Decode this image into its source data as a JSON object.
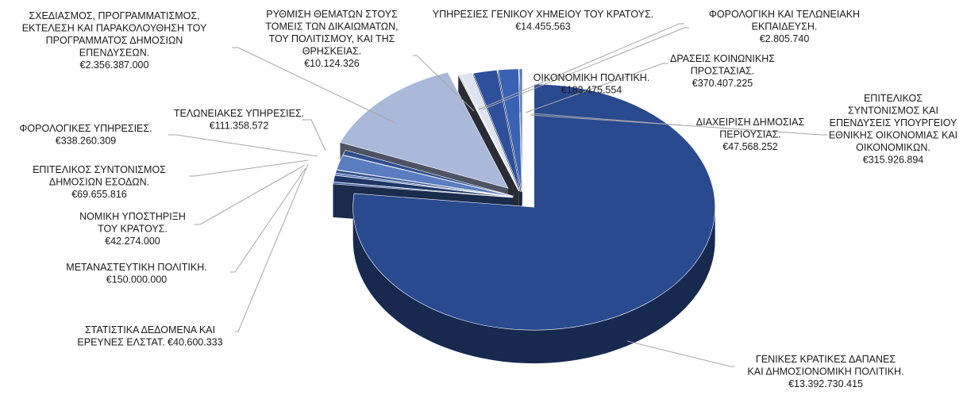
{
  "chart_data": {
    "type": "pie",
    "style": "3d-exploded",
    "title": "",
    "currency": "€",
    "slices": [
      {
        "label": "ΓΕΝΙΚΕΣ ΚΡΑΤΙΚΕΣ ΔΑΠΑΝΕΣ ΚΑΙ ΔΗΜΟΣΙΟΝΟΜΙΚΗ ΠΟΛΙΤΙΚΗ.",
        "value": 13392730415,
        "value_text": "€13.392.730.415",
        "color": "#2a4a90"
      },
      {
        "label": "ΣΤΑΤΙΣΤΙΚΑ ΔΕΔΟΜΕΝΑ ΚΑΙ ΕΡΕΥΝΕΣ ΕΛΣΤΑΤ.",
        "value": 40600333,
        "value_text": "€40.600.333",
        "color": "#3b5fa8"
      },
      {
        "label": "ΜΕΤΑΝΑΣΤΕΥΤΙΚΗ ΠΟΛΙΤΙΚΗ.",
        "value": 150000000,
        "value_text": "€150.000.000",
        "color": "#1f3566"
      },
      {
        "label": "ΝΟΜΙΚΗ ΥΠΟΣΤΗΡΙΞΗ ΤΟΥ ΚΡΑΤΟΥΣ.",
        "value": 42274000,
        "value_text": "€42.274.000",
        "color": "#4a6db5"
      },
      {
        "label": "ΕΠΙΤΕΛΙΚΟΣ ΣΥΝΤΟΝΙΣΜΟΣ ΔΗΜΟΣΙΩΝ ΕΣΟΔΩΝ.",
        "value": 69655816,
        "value_text": "€69.655.816",
        "color": "#35548f"
      },
      {
        "label": "ΦΟΡΟΛΟΓΙΚΕΣ ΥΠΗΡΕΣΙΕΣ.",
        "value": 338260309,
        "value_text": "€338.260.309",
        "color": "#5a7cc0"
      },
      {
        "label": "ΤΕΛΩΝΕΙΑΚΕΣ ΥΠΗΡΕΣΙΕΣ.",
        "value": 111358572,
        "value_text": "€111.358.572",
        "color": "#2f4f8f"
      },
      {
        "label": "ΣΧΕΔΙΑΣΜΟΣ, ΠΡΟΓΡΑΜΜΑΤΙΣΜΟΣ, ΕΚΤΕΛΕΣΗ ΚΑΙ ΠΑΡΑΚΟΛΟΥΘΗΣΗ ΤΟΥ ΠΡΟΓΡΑΜΜΑΤΟΣ ΔΗΜΟΣΙΩΝ ΕΠΕΝΔΥΣΕΩΝ.",
        "value": 2356387000,
        "value_text": "€2.356.387.000",
        "color": "#aab8da"
      },
      {
        "label": "ΡΥΘΜΙΣΗ ΘΕΜΑΤΩΝ ΣΤΟΥΣ ΤΟΜΕΙΣ ΤΩΝ ΔΙΚΑΙΩΜΑΤΩΝ, ΤΟΥ ΠΟΛΙΤΙΣΜΟΥ, ΚΑΙ ΤΗΣ ΘΡΗΣΚΕΙΑΣ.",
        "value": 10124326,
        "value_text": "€10.124.326",
        "color": "#5b6273"
      },
      {
        "label": "ΥΠΗΡΕΣΙΕΣ ΓΕΝΙΚΟΥ ΧΗΜΕΙΟΥ ΤΟΥ ΚΡΑΤΟΥΣ.",
        "value": 14455563,
        "value_text": "€14.455.563",
        "color": "#6c7383"
      },
      {
        "label": "ΦΟΡΟΛΟΓΙΚΗ ΚΑΙ ΤΕΛΩΝΕΙΑΚΗ ΕΚΠΑΙΔΕΥΣΗ.",
        "value": 2805740,
        "value_text": "€2.805.740",
        "color": "#8a93a8"
      },
      {
        "label": "ΟΙΚΟΝΟΜΙΚΗ ΠΟΛΙΤΙΚΗ.",
        "value": 183475554,
        "value_text": "€183.475.554",
        "color": "#dde3f0"
      },
      {
        "label": "ΔΡΑΣΕΙΣ ΚΟΙΝΩΝΙΚΗΣ ΠΡΟΣΤΑΣΙΑΣ.",
        "value": 370407225,
        "value_text": "€370.407.225",
        "color": "#2d4f9c"
      },
      {
        "label": "ΕΠΙΤΕΛΙΚΟΣ ΣΥΝΤΟΝΙΣΜΟΣ ΚΑΙ ΕΠΕΝΔΥΣΕΙΣ ΥΠΟΥΡΓΕΙΟΥ ΕΘΝΙΚΗΣ ΟΙΚΟΝΟΜΙΑΣ ΚΑΙ ΟΙΚΟΝΟΜΙΚΩΝ.",
        "value": 315926894,
        "value_text": "€315.926.894",
        "color": "#3a62b4"
      },
      {
        "label": "ΔΙΑΧΕΙΡΙΣΗ ΔΗΜΟΣΙΑΣ ΠΕΡΙΟΥΣΙΑΣ.",
        "value": 47568252,
        "value_text": "€47.568.252",
        "color": "#4d76c4"
      }
    ],
    "legend": "none",
    "data_labels": "outside-with-leader-lines"
  }
}
